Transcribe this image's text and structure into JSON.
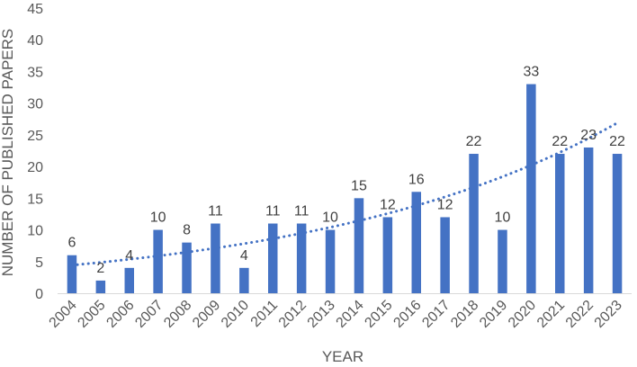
{
  "chart_data": {
    "type": "bar",
    "categories": [
      "2004",
      "2005",
      "2006",
      "2007",
      "2008",
      "2009",
      "2010",
      "2011",
      "2012",
      "2013",
      "2014",
      "2015",
      "2016",
      "2017",
      "2018",
      "2019",
      "2020",
      "2021",
      "2022",
      "2023"
    ],
    "values": [
      6,
      2,
      4,
      10,
      8,
      11,
      4,
      11,
      11,
      10,
      15,
      12,
      16,
      12,
      22,
      10,
      33,
      22,
      23,
      22
    ],
    "xlabel": "YEAR",
    "ylabel": "NUMBER OF PUBLISHED PAPERS",
    "ylim": [
      0,
      45
    ],
    "yticks": [
      0,
      5,
      10,
      15,
      20,
      25,
      30,
      35,
      40,
      45
    ],
    "grid": false,
    "legend": "none",
    "data_labels": true,
    "trendline": {
      "type": "exponential",
      "style": "dotted"
    },
    "colors": {
      "bar": "#4472C4",
      "trend": "#4472C4"
    }
  }
}
